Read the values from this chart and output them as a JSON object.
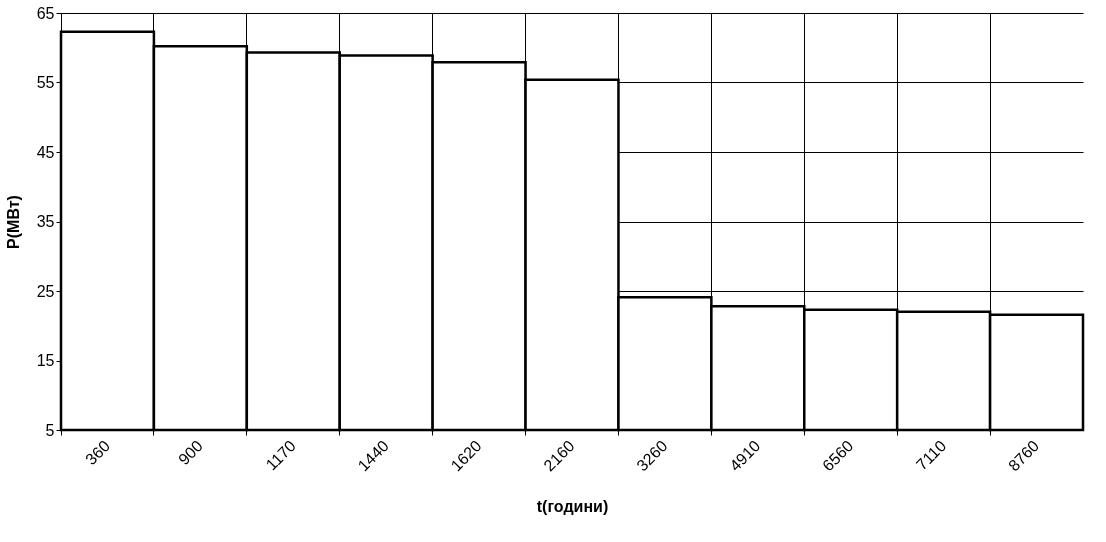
{
  "chart_data": {
    "type": "bar",
    "xlabel": "t(години)",
    "ylabel": "P(МВт)",
    "categories": [
      "360",
      "900",
      "1170",
      "1440",
      "1620",
      "2160",
      "3260",
      "4910",
      "6560",
      "7110",
      "8760"
    ],
    "values": [
      62.3,
      60.2,
      59.3,
      58.9,
      57.9,
      55.4,
      24.1,
      22.8,
      22.3,
      22.0,
      21.6
    ],
    "color": "#ffffff",
    "ylim": [
      5,
      65
    ],
    "yticks": [
      5,
      15,
      25,
      35,
      45,
      55,
      65
    ],
    "grid": true
  }
}
